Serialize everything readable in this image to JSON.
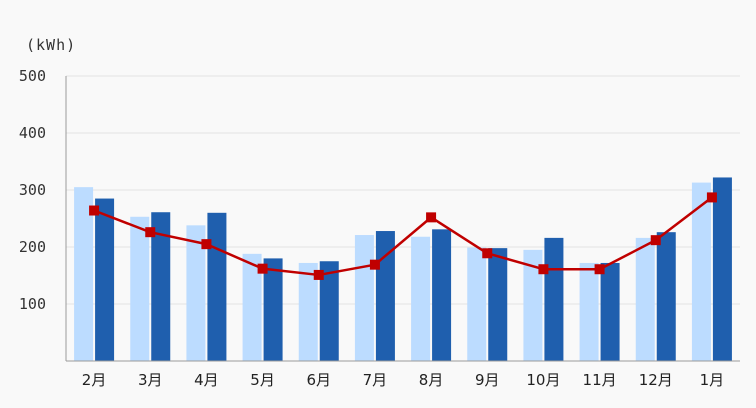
{
  "chart_data": {
    "type": "bar",
    "unit_label": "(kWh)",
    "categories": [
      "2月",
      "3月",
      "4月",
      "5月",
      "6月",
      "7月",
      "8月",
      "9月",
      "10月",
      "11月",
      "12月",
      "1月"
    ],
    "ylim": [
      0,
      500
    ],
    "y_ticks": [
      "100",
      "200",
      "300",
      "400",
      "500"
    ],
    "grid": true,
    "series": [
      {
        "type": "bar",
        "color": "#bcdcff",
        "values": [
          305,
          253,
          238,
          188,
          172,
          221,
          218,
          199,
          195,
          172,
          216,
          313
        ]
      },
      {
        "type": "bar",
        "color": "#1f5fae",
        "values": [
          285,
          261,
          260,
          180,
          175,
          228,
          231,
          198,
          216,
          172,
          226,
          322
        ]
      },
      {
        "type": "line",
        "color": "#c00000",
        "values": [
          264,
          226,
          205,
          162,
          151,
          169,
          252,
          189,
          161,
          161,
          212,
          287
        ]
      }
    ]
  }
}
